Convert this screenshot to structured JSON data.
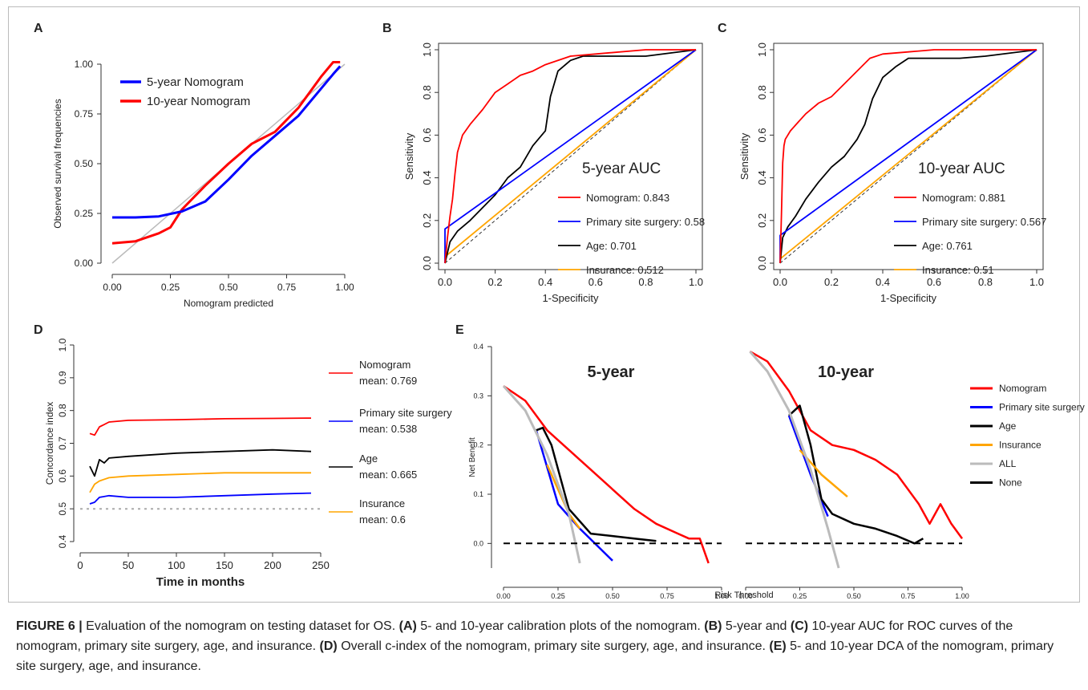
{
  "caption": {
    "fig_label": "FIGURE 6 |",
    "text1": " Evaluation of the nomogram on testing dataset for OS. ",
    "a": "(A)",
    "text2": " 5- and 10-year calibration plots of the nomogram. ",
    "b": "(B)",
    "text3": " 5-year and ",
    "c": "(C)",
    "text4": " 10-year AUC for ROC curves of the nomogram, primary site surgery, age, and insurance. ",
    "d": "(D)",
    "text5": " Overall c-index of the nomogram, primary site surgery, age, and insurance. ",
    "e": "(E)",
    "text6": " 5- and 10-year DCA of the nomogram, primary site surgery, age, and insurance."
  },
  "colors": {
    "nomogram": "#ff0000",
    "surgery": "#0000ff",
    "age": "#000000",
    "insurance": "#ffa500",
    "all": "#bbbbbb"
  },
  "chart_data": [
    {
      "panel": "A",
      "type": "line",
      "xlabel": "Nomogram predicted",
      "ylabel": "Observed survival frequencies",
      "xlim": [
        0,
        1
      ],
      "ylim": [
        0,
        1
      ],
      "xticks": [
        "0.00",
        "0.25",
        "0.50",
        "0.75",
        "1.00"
      ],
      "yticks": [
        "0.00",
        "0.25",
        "0.50",
        "0.75",
        "1.00"
      ],
      "series": [
        {
          "name": "5-year Nomogram",
          "color": "#0000ff",
          "x": [
            0,
            0.1,
            0.2,
            0.3,
            0.4,
            0.5,
            0.6,
            0.7,
            0.8,
            0.9,
            0.95,
            0.98
          ],
          "y": [
            0.23,
            0.23,
            0.235,
            0.26,
            0.31,
            0.42,
            0.54,
            0.64,
            0.74,
            0.88,
            0.95,
            0.99
          ]
        },
        {
          "name": "10-year Nomogram",
          "color": "#ff0000",
          "x": [
            0,
            0.1,
            0.2,
            0.25,
            0.3,
            0.4,
            0.5,
            0.6,
            0.7,
            0.8,
            0.9,
            0.95,
            0.98
          ],
          "y": [
            0.1,
            0.11,
            0.15,
            0.18,
            0.27,
            0.39,
            0.5,
            0.6,
            0.66,
            0.78,
            0.94,
            1.01,
            1.01
          ]
        },
        {
          "name": "",
          "color": "#bbbbbb",
          "x": [
            0,
            1
          ],
          "y": [
            0,
            1
          ]
        }
      ]
    },
    {
      "panel": "B",
      "type": "line",
      "title": "5-year AUC",
      "xlabel": "1-Specificity",
      "ylabel": "Sensitivity",
      "xlim": [
        0,
        1
      ],
      "ylim": [
        0,
        1
      ],
      "xticks": [
        "0.0",
        "0.2",
        "0.4",
        "0.6",
        "0.8",
        "1.0"
      ],
      "yticks": [
        "0.0",
        "0.2",
        "0.4",
        "0.6",
        "0.8",
        "1.0"
      ],
      "series": [
        {
          "name": "Nomogram: 0.843",
          "color": "#ff0000",
          "x": [
            0,
            0.01,
            0.02,
            0.03,
            0.04,
            0.05,
            0.07,
            0.1,
            0.15,
            0.2,
            0.25,
            0.3,
            0.35,
            0.4,
            0.5,
            0.6,
            0.8,
            1
          ],
          "y": [
            0,
            0.12,
            0.22,
            0.3,
            0.42,
            0.52,
            0.6,
            0.65,
            0.72,
            0.8,
            0.84,
            0.88,
            0.9,
            0.93,
            0.97,
            0.98,
            1,
            1
          ]
        },
        {
          "name": "Primary site surgery: 0.58",
          "color": "#0000ff",
          "x": [
            0,
            0,
            1
          ],
          "y": [
            0,
            0.16,
            1
          ]
        },
        {
          "name": "Age: 0.701",
          "color": "#000000",
          "x": [
            0,
            0.02,
            0.05,
            0.1,
            0.15,
            0.2,
            0.25,
            0.3,
            0.35,
            0.4,
            0.42,
            0.45,
            0.5,
            0.55,
            0.6,
            0.8,
            1
          ],
          "y": [
            0,
            0.1,
            0.15,
            0.2,
            0.26,
            0.32,
            0.4,
            0.45,
            0.55,
            0.62,
            0.78,
            0.9,
            0.95,
            0.97,
            0.97,
            0.97,
            1
          ]
        },
        {
          "name": "Insurance: 0.512",
          "color": "#ffa500",
          "x": [
            0,
            1
          ],
          "y": [
            0.03,
            1
          ]
        }
      ]
    },
    {
      "panel": "C",
      "type": "line",
      "title": "10-year AUC",
      "xlabel": "1-Specificity",
      "ylabel": "Sensitivity",
      "xlim": [
        0,
        1
      ],
      "ylim": [
        0,
        1
      ],
      "xticks": [
        "0.0",
        "0.2",
        "0.4",
        "0.6",
        "0.8",
        "1.0"
      ],
      "yticks": [
        "0.0",
        "0.2",
        "0.4",
        "0.6",
        "0.8",
        "1.0"
      ],
      "series": [
        {
          "name": "Nomogram: 0.881",
          "color": "#ff0000",
          "x": [
            0,
            0.005,
            0.01,
            0.015,
            0.02,
            0.04,
            0.07,
            0.1,
            0.15,
            0.2,
            0.25,
            0.3,
            0.35,
            0.4,
            0.5,
            0.6,
            0.8,
            1
          ],
          "y": [
            0,
            0.22,
            0.47,
            0.55,
            0.58,
            0.62,
            0.66,
            0.7,
            0.75,
            0.78,
            0.84,
            0.9,
            0.96,
            0.98,
            0.99,
            1,
            1,
            1
          ]
        },
        {
          "name": "Primary site surgery: 0.567",
          "color": "#0000ff",
          "x": [
            0,
            0,
            1
          ],
          "y": [
            0,
            0.13,
            1
          ]
        },
        {
          "name": "Age: 0.761",
          "color": "#000000",
          "x": [
            0,
            0.01,
            0.03,
            0.06,
            0.1,
            0.15,
            0.2,
            0.25,
            0.3,
            0.33,
            0.36,
            0.4,
            0.45,
            0.5,
            0.7,
            0.8,
            1
          ],
          "y": [
            0,
            0.12,
            0.17,
            0.22,
            0.3,
            0.38,
            0.45,
            0.5,
            0.58,
            0.65,
            0.77,
            0.87,
            0.92,
            0.96,
            0.96,
            0.97,
            1
          ]
        },
        {
          "name": "Insurance: 0.51",
          "color": "#ffa500",
          "x": [
            0,
            1
          ],
          "y": [
            0.02,
            1
          ]
        }
      ]
    },
    {
      "panel": "D",
      "type": "line",
      "xlabel": "Time in months",
      "ylabel": "Concordance index",
      "xlim": [
        0,
        250
      ],
      "ylim": [
        0.4,
        1
      ],
      "xticks": [
        "0",
        "50",
        "100",
        "150",
        "200",
        "250"
      ],
      "yticks": [
        "0.4",
        "0.5",
        "0.6",
        "0.7",
        "0.8",
        "0.9",
        "1.0"
      ],
      "reference_y": 0.5,
      "series": [
        {
          "name": "Nomogram",
          "mean": "mean: 0.769",
          "color": "#ff0000",
          "x": [
            10,
            15,
            20,
            30,
            50,
            100,
            150,
            200,
            240
          ],
          "y": [
            0.73,
            0.725,
            0.75,
            0.765,
            0.77,
            0.772,
            0.775,
            0.776,
            0.777
          ]
        },
        {
          "name": "Primary site surgery",
          "mean": "mean: 0.538",
          "color": "#0000ff",
          "x": [
            10,
            15,
            20,
            30,
            50,
            100,
            150,
            200,
            240
          ],
          "y": [
            0.515,
            0.52,
            0.535,
            0.54,
            0.535,
            0.535,
            0.54,
            0.545,
            0.548
          ]
        },
        {
          "name": "Age",
          "mean": "mean: 0.665",
          "color": "#000000",
          "x": [
            10,
            15,
            20,
            25,
            30,
            50,
            100,
            150,
            200,
            240
          ],
          "y": [
            0.63,
            0.6,
            0.65,
            0.64,
            0.655,
            0.66,
            0.67,
            0.675,
            0.68,
            0.675
          ]
        },
        {
          "name": "Insurance",
          "mean": "mean: 0.6",
          "color": "#ffa500",
          "x": [
            10,
            15,
            20,
            30,
            50,
            100,
            150,
            200,
            240
          ],
          "y": [
            0.55,
            0.575,
            0.585,
            0.595,
            0.6,
            0.605,
            0.61,
            0.61,
            0.61
          ]
        }
      ]
    },
    {
      "panel": "E",
      "type": "line",
      "xlabel": "Risk Threshold",
      "ylabel": "Net Benefit",
      "subplot_titles": [
        "5-year",
        "10-year"
      ],
      "xticks": [
        "0.00",
        "0.25",
        "0.50",
        "0.75",
        "1.00"
      ],
      "yticks": [
        "0.0",
        "0.1",
        "0.2",
        "0.3",
        "0.4"
      ],
      "ylim": [
        -0.05,
        0.4
      ],
      "legend": [
        "Nomogram",
        "Primary site surgery",
        "Age",
        "Insurance",
        "ALL",
        "None"
      ],
      "subplots": [
        {
          "name": "5-year",
          "series": [
            {
              "name": "Nomogram",
              "color": "#ff0000",
              "x": [
                0,
                0.1,
                0.2,
                0.3,
                0.4,
                0.5,
                0.6,
                0.7,
                0.8,
                0.85,
                0.9,
                0.94
              ],
              "y": [
                0.32,
                0.29,
                0.23,
                0.19,
                0.15,
                0.11,
                0.07,
                0.04,
                0.02,
                0.01,
                0.01,
                -0.04
              ]
            },
            {
              "name": "Primary site surgery",
              "color": "#0000ff",
              "x": [
                0.15,
                0.25,
                0.35,
                0.5
              ],
              "y": [
                0.23,
                0.08,
                0.03,
                -0.035
              ]
            },
            {
              "name": "Age",
              "color": "#000000",
              "x": [
                0.15,
                0.18,
                0.22,
                0.3,
                0.4,
                0.5,
                0.6,
                0.7
              ],
              "y": [
                0.23,
                0.235,
                0.2,
                0.07,
                0.02,
                0.015,
                0.01,
                0.005
              ]
            },
            {
              "name": "Insurance",
              "color": "#ffa500",
              "x": [
                0.2,
                0.25,
                0.3,
                0.35
              ],
              "y": [
                0.16,
                0.11,
                0.06,
                0.03
              ]
            },
            {
              "name": "ALL",
              "color": "#bbbbbb",
              "x": [
                0,
                0.1,
                0.2,
                0.3,
                0.35
              ],
              "y": [
                0.32,
                0.27,
                0.18,
                0.06,
                -0.04
              ]
            },
            {
              "name": "None",
              "color": "#000000",
              "x": [
                0,
                1
              ],
              "y": [
                0,
                0
              ]
            }
          ]
        },
        {
          "name": "10-year",
          "series": [
            {
              "name": "Nomogram",
              "color": "#ff0000",
              "x": [
                0.02,
                0.1,
                0.2,
                0.3,
                0.4,
                0.5,
                0.6,
                0.7,
                0.8,
                0.85,
                0.9,
                0.95,
                1
              ],
              "y": [
                0.39,
                0.37,
                0.31,
                0.23,
                0.2,
                0.19,
                0.17,
                0.14,
                0.08,
                0.04,
                0.08,
                0.04,
                0.01
              ]
            },
            {
              "name": "Primary site surgery",
              "color": "#0000ff",
              "x": [
                0.2,
                0.3,
                0.38
              ],
              "y": [
                0.26,
                0.14,
                0.055
              ]
            },
            {
              "name": "Age",
              "color": "#000000",
              "x": [
                0.2,
                0.25,
                0.3,
                0.35,
                0.4,
                0.5,
                0.6,
                0.7,
                0.78,
                0.82
              ],
              "y": [
                0.26,
                0.28,
                0.2,
                0.09,
                0.06,
                0.04,
                0.03,
                0.015,
                0,
                0.01
              ]
            },
            {
              "name": "Insurance",
              "color": "#ffa500",
              "x": [
                0.25,
                0.35,
                0.47
              ],
              "y": [
                0.19,
                0.14,
                0.095
              ]
            },
            {
              "name": "ALL",
              "color": "#bbbbbb",
              "x": [
                0.02,
                0.1,
                0.2,
                0.3,
                0.38,
                0.43
              ],
              "y": [
                0.39,
                0.35,
                0.27,
                0.15,
                0.03,
                -0.05
              ]
            },
            {
              "name": "None",
              "color": "#000000",
              "x": [
                0,
                1
              ],
              "y": [
                0,
                0
              ]
            }
          ]
        }
      ]
    }
  ]
}
